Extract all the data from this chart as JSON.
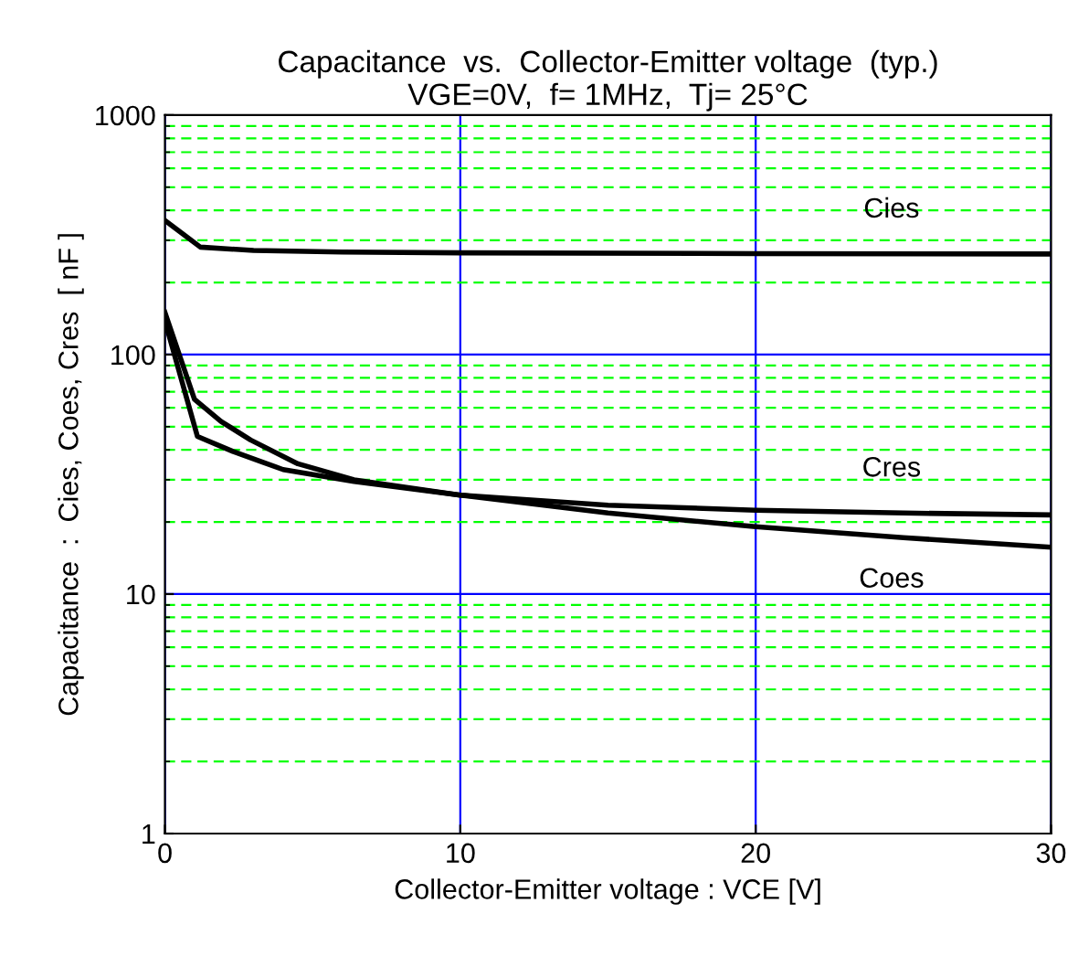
{
  "chart_data": {
    "type": "line",
    "title": "Capacitance  vs.  Collector-Emitter voltage  (typ.)",
    "subtitle": "VGE=0V,  f= 1MHz,  Tj= 25°C",
    "xlabel": "Collector-Emitter voltage : VCE [V]",
    "ylabel": "Capacitance  :  Cies, Coes, Cres  [ nF ]",
    "series": [
      {
        "name": "Cies",
        "color": "#000000",
        "x": [
          0,
          1.2,
          3,
          6,
          10,
          20,
          30
        ],
        "values": [
          363,
          281,
          272,
          268,
          266,
          264,
          263
        ]
      },
      {
        "name": "Cres",
        "color": "#000000",
        "x": [
          0,
          1.0,
          1.9,
          2.9,
          4.5,
          6.4,
          10,
          15,
          20,
          25,
          30
        ],
        "values": [
          150,
          65,
          52.6,
          44,
          35,
          30,
          25.9,
          23.5,
          22.4,
          21.8,
          21.4
        ]
      },
      {
        "name": "Coes",
        "color": "#000000",
        "x": [
          0,
          1.1,
          2.3,
          4.0,
          6.4,
          10,
          15,
          20,
          25,
          30
        ],
        "values": [
          138,
          45.5,
          39.4,
          33.1,
          29.5,
          25.9,
          21.8,
          19.1,
          17.2,
          15.7
        ]
      }
    ],
    "log": "y",
    "xlim": [
      0,
      30
    ],
    "ylim": [
      1,
      1000
    ],
    "xticks": [
      0,
      10,
      20,
      30
    ],
    "yticks": [
      1,
      {
        "value": 2,
        "label": null
      },
      {
        "value": 3,
        "label": null
      },
      {
        "value": 4,
        "label": null
      },
      {
        "value": 5,
        "label": null
      },
      {
        "value": 6,
        "label": null
      },
      {
        "value": 7,
        "label": null
      },
      {
        "value": 8,
        "label": null
      },
      {
        "value": 9,
        "label": null
      },
      10,
      {
        "value": 20,
        "label": null
      },
      {
        "value": 30,
        "label": null
      },
      {
        "value": 40,
        "label": null
      },
      {
        "value": 50,
        "label": null
      },
      {
        "value": 60,
        "label": null
      },
      {
        "value": 70,
        "label": null
      },
      {
        "value": 80,
        "label": null
      },
      {
        "value": 90,
        "label": null
      },
      100,
      {
        "value": 200,
        "label": null
      },
      {
        "value": 300,
        "label": null
      },
      {
        "value": 400,
        "label": null
      },
      {
        "value": 500,
        "label": null
      },
      {
        "value": 600,
        "label": null
      },
      {
        "value": 700,
        "label": null
      },
      {
        "value": 800,
        "label": null
      },
      {
        "value": 900,
        "label": null
      },
      1000
    ],
    "grid": true,
    "line_style": "solid",
    "marker": "none"
  }
}
